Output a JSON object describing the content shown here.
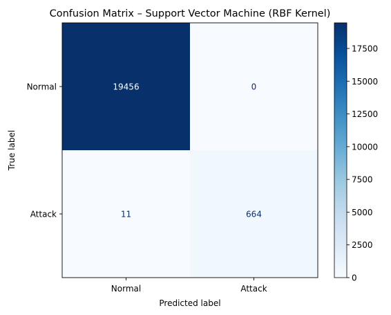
{
  "chart_data": {
    "type": "heatmap",
    "title": "Confusion Matrix – Support Vector Machine (RBF Kernel)",
    "xlabel": "Predicted label",
    "ylabel": "True label",
    "x_categories": [
      "Normal",
      "Attack"
    ],
    "y_categories": [
      "Normal",
      "Attack"
    ],
    "matrix": [
      [
        19456,
        0
      ],
      [
        11,
        664
      ]
    ],
    "colormap": "Blues",
    "colorbar": {
      "vmin": 0,
      "vmax": 19456,
      "ticks": [
        0,
        2500,
        5000,
        7500,
        10000,
        12500,
        15000,
        17500
      ]
    },
    "colors": {
      "low": "#f7fbff",
      "high": "#08306b",
      "text_on_dark": "#ffffff",
      "text_on_light": "#08306b"
    }
  }
}
